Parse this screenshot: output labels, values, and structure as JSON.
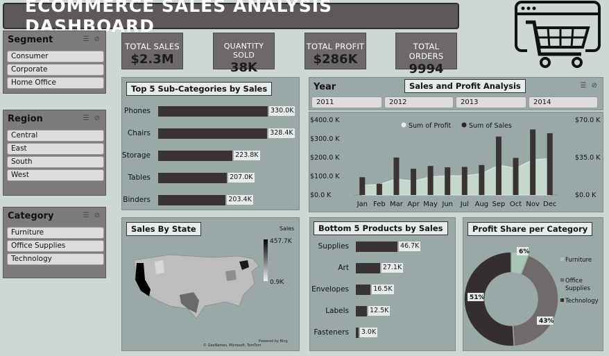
{
  "title": "ECOMMERCE SALES ANALYSIS DASHBOARD",
  "slicers": {
    "segment": {
      "label": "Segment",
      "items": [
        "Consumer",
        "Corporate",
        "Home Office"
      ]
    },
    "region": {
      "label": "Region",
      "items": [
        "Central",
        "East",
        "South",
        "West"
      ]
    },
    "category": {
      "label": "Category",
      "items": [
        "Furniture",
        "Office Supplies",
        "Technology"
      ]
    },
    "year": {
      "label": "Year",
      "items": [
        "2011",
        "2012",
        "2013",
        "2014"
      ]
    }
  },
  "kpis": [
    {
      "label": "TOTAL SALES",
      "value": "$2.3M"
    },
    {
      "label": "QUANTITY SOLD",
      "value": "38K"
    },
    {
      "label": "TOTAL PROFIT",
      "value": "$286K"
    },
    {
      "label": "TOTAL ORDERS",
      "value": "9994"
    }
  ],
  "icons": {
    "logo": "shopping-cart-browser-icon",
    "slicer_tools": "filter-clear-icon"
  },
  "chart_data": [
    {
      "type": "bar",
      "title": "Top 5 Sub-Categories by Sales",
      "categories": [
        "Phones",
        "Chairs",
        "Storage",
        "Tables",
        "Binders"
      ],
      "values": [
        330.0,
        328.4,
        223.8,
        207.0,
        203.4
      ],
      "labels": [
        "330.0K",
        "328.4K",
        "223.8K",
        "207.0K",
        "203.4K"
      ],
      "unit": "K",
      "orientation": "horizontal"
    },
    {
      "type": "area",
      "title": "Sales and Profit Analysis",
      "categories": [
        "Jan",
        "Feb",
        "Mar",
        "Apr",
        "May",
        "Jun",
        "Jul",
        "Aug",
        "Sep",
        "Oct",
        "Nov",
        "Dec"
      ],
      "series": [
        {
          "name": "Sum of Profit",
          "type": "area",
          "axis": "right",
          "values": [
            9,
            10,
            15,
            13,
            17,
            18,
            18,
            20,
            28,
            25,
            33,
            34
          ]
        },
        {
          "name": "Sum of Sales",
          "type": "bar",
          "axis": "left",
          "values": [
            95,
            60,
            200,
            140,
            155,
            148,
            150,
            160,
            312,
            198,
            350,
            330
          ]
        }
      ],
      "y_left": {
        "ticks": [
          "$0.0 K",
          "$100.0 K",
          "$200.0 K",
          "$300.0 K",
          "$400.0 K"
        ],
        "range": [
          0,
          400
        ]
      },
      "y_right": {
        "ticks": [
          "$0.0 K",
          "$35.0 K",
          "$70.0 K"
        ],
        "range": [
          0,
          70
        ]
      },
      "legend": "top-center"
    },
    {
      "type": "bar",
      "title": "Bottom 5 Products by Sales",
      "categories": [
        "Supplies",
        "Art",
        "Envelopes",
        "Labels",
        "Fasteners"
      ],
      "values": [
        46.7,
        27.1,
        16.5,
        12.5,
        3.0
      ],
      "labels": [
        "46.7K",
        "27.1K",
        "16.5K",
        "12.5K",
        "3.0K"
      ],
      "unit": "K",
      "orientation": "horizontal"
    },
    {
      "type": "pie",
      "title": "Profit Share per Category",
      "donut": true,
      "slices": [
        {
          "name": "Furniture",
          "value": 6,
          "label": "6%",
          "color": "#a8c5b5"
        },
        {
          "name": "Office Supplies",
          "value": 43,
          "label": "43%",
          "color": "#706a6a"
        },
        {
          "name": "Technology",
          "value": 51,
          "label": "51%",
          "color": "#342e2e"
        }
      ],
      "legend": "right"
    }
  ],
  "map": {
    "title": "Sales By State",
    "legend_title": "Sales",
    "legend_max": "457.7K",
    "legend_min": "0.9K",
    "credit_1": "Powered by Bing",
    "credit_2": "© GeoNames, Microsoft, TomTom"
  },
  "colors": {
    "background": "#cdd8d2",
    "panel": "#9aa9a7",
    "bar": "#3a3333",
    "title_bar": "#5d5959"
  }
}
